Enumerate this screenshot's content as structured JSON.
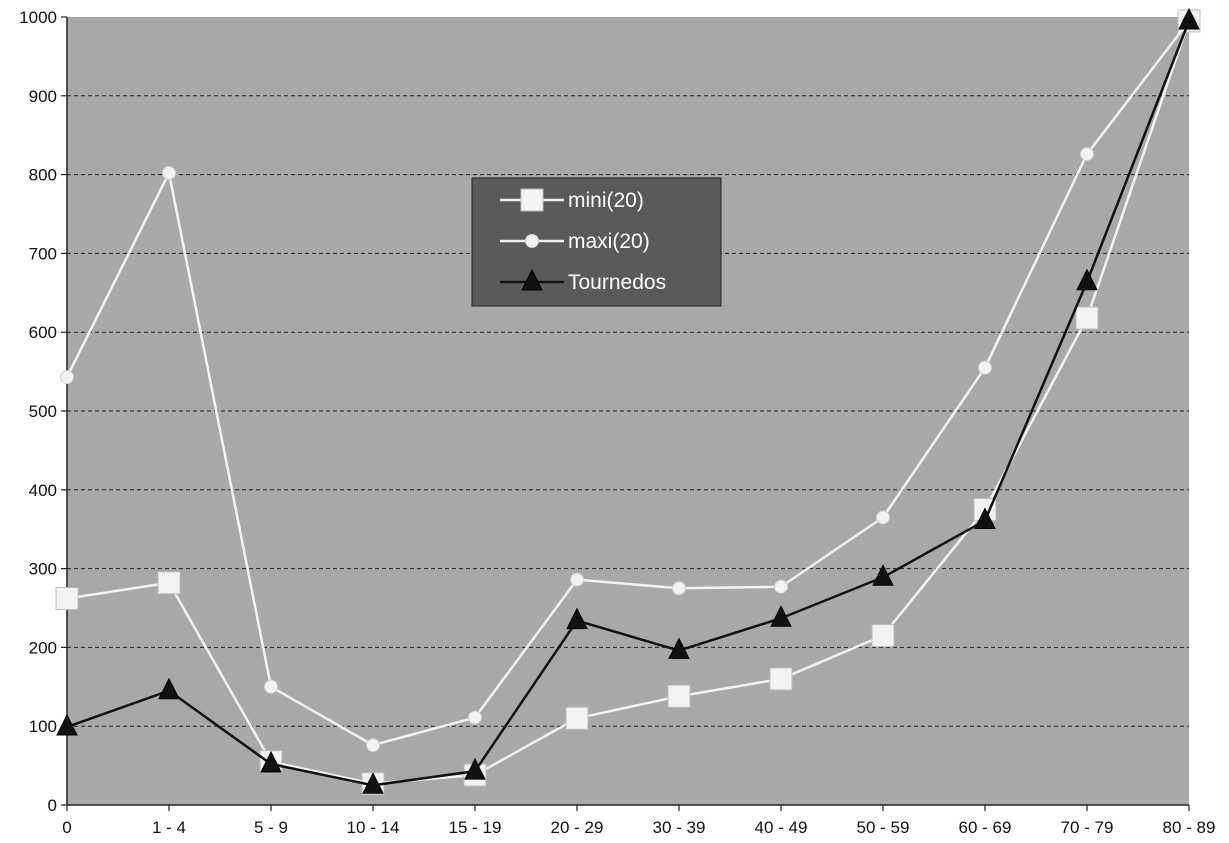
{
  "chart_data": {
    "type": "line",
    "title": "",
    "xlabel": "",
    "ylabel": "",
    "categories": [
      "0",
      "1 - 4",
      "5 - 9",
      "10 - 14",
      "15 - 19",
      "20 - 29",
      "30 - 39",
      "40 - 49",
      "50 - 59",
      "60 - 69",
      "70 - 79",
      "80 - 89"
    ],
    "ylim": [
      0,
      1000
    ],
    "yticks": [
      0,
      100,
      200,
      300,
      400,
      500,
      600,
      700,
      800,
      900,
      1000
    ],
    "grid": "horizontal dashed",
    "legend_position": "upper-center",
    "plot_background": "#a8a8a8",
    "series": [
      {
        "name": "mini(20)",
        "marker": "square",
        "color": "#f2f2f2",
        "values": [
          262,
          282,
          55,
          27,
          38,
          110,
          138,
          160,
          215,
          375,
          618,
          995
        ]
      },
      {
        "name": "maxi(20)",
        "marker": "circle",
        "color": "#f2f2f2",
        "values": [
          543,
          802,
          150,
          76,
          111,
          286,
          275,
          277,
          365,
          555,
          826,
          995
        ]
      },
      {
        "name": "Tournedos",
        "marker": "triangle",
        "color": "#111111",
        "values": [
          99,
          145,
          52,
          25,
          43,
          234,
          196,
          237,
          289,
          361,
          664,
          995
        ]
      }
    ]
  }
}
